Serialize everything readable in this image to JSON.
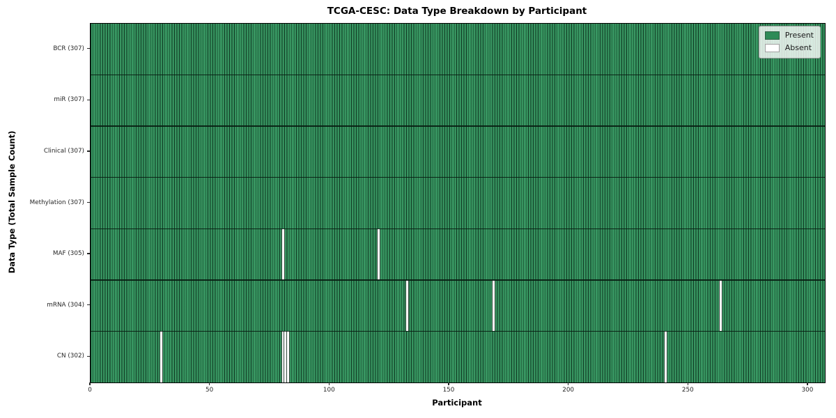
{
  "figure": {
    "title": "TCGA-CESC: Data Type Breakdown by Participant",
    "xlabel": "Participant",
    "ylabel": "Data Type (Total Sample Count)"
  },
  "chart_data": {
    "type": "heatmap",
    "title": "TCGA-CESC: Data Type Breakdown by Participant",
    "xlabel": "Participant",
    "ylabel": "Data Type (Total Sample Count)",
    "x_range": [
      0,
      307
    ],
    "x_ticks": [
      0,
      50,
      100,
      150,
      200,
      250,
      300
    ],
    "categories": [
      "BCR (307)",
      "miR (307)",
      "Clinical (307)",
      "Methylation (307)",
      "MAF (305)",
      "mRNA (304)",
      "CN (302)"
    ],
    "rows": [
      {
        "label": "BCR (307)",
        "data_type": "BCR",
        "total_samples": 307,
        "absent_participants": []
      },
      {
        "label": "miR (307)",
        "data_type": "miR",
        "total_samples": 307,
        "absent_participants": []
      },
      {
        "label": "Clinical (307)",
        "data_type": "Clinical",
        "total_samples": 307,
        "absent_participants": []
      },
      {
        "label": "Methylation (307)",
        "data_type": "Methylation",
        "total_samples": 307,
        "absent_participants": []
      },
      {
        "label": "MAF (305)",
        "data_type": "MAF",
        "total_samples": 305,
        "absent_participants": [
          80,
          120
        ]
      },
      {
        "label": "mRNA (304)",
        "data_type": "mRNA",
        "total_samples": 304,
        "absent_participants": [
          132,
          168,
          263
        ]
      },
      {
        "label": "CN (302)",
        "data_type": "CN",
        "total_samples": 302,
        "absent_participants": [
          29,
          80,
          81,
          82,
          240
        ]
      }
    ],
    "legend": [
      {
        "label": "Present",
        "color": "#2e8b57"
      },
      {
        "label": "Absent",
        "color": "#ffffff"
      }
    ],
    "legend_position": "upper right",
    "grid": false,
    "colors": {
      "present": "#2e8b57",
      "present_light": "#3f9c68",
      "absent": "#ffffff",
      "cell_edge": "#0c2a1a",
      "row_divider": "#081c11",
      "plot_border": "#000000"
    }
  }
}
